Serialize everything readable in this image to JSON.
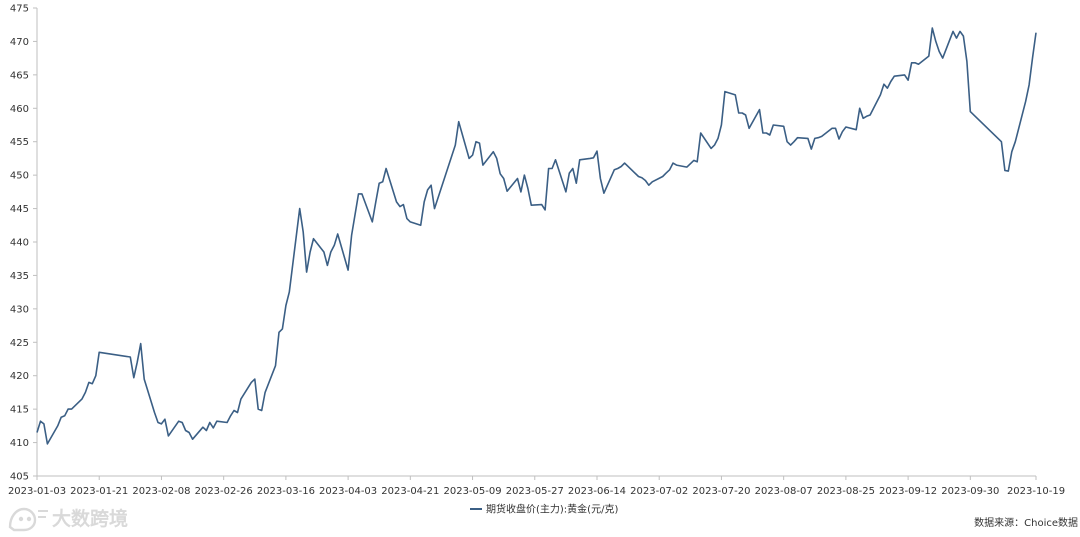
{
  "chart_data": {
    "type": "line",
    "title": "",
    "xlabel": "",
    "ylabel": "",
    "ylim": [
      405,
      475
    ],
    "y_ticks": [
      405,
      410,
      415,
      420,
      425,
      430,
      435,
      440,
      445,
      450,
      455,
      460,
      465,
      470,
      475
    ],
    "x_ticks": [
      "2023-01-03",
      "2023-01-21",
      "2023-02-08",
      "2023-02-26",
      "2023-03-16",
      "2023-04-03",
      "2023-04-21",
      "2023-05-09",
      "2023-05-27",
      "2023-06-14",
      "2023-07-02",
      "2023-07-20",
      "2023-08-07",
      "2023-08-25",
      "2023-09-12",
      "2023-09-30",
      "2023-10-19"
    ],
    "grid": false,
    "legend_position": "bottom-center",
    "series": [
      {
        "name": "期货收盘价(主力):黄金(元/克)",
        "color": "#3b5f85",
        "points": [
          [
            "2023-01-03",
            411.5
          ],
          [
            "2023-01-04",
            413.2
          ],
          [
            "2023-01-05",
            412.8
          ],
          [
            "2023-01-06",
            409.8
          ],
          [
            "2023-01-09",
            412.5
          ],
          [
            "2023-01-10",
            413.8
          ],
          [
            "2023-01-11",
            414.0
          ],
          [
            "2023-01-12",
            415.0
          ],
          [
            "2023-01-13",
            415.0
          ],
          [
            "2023-01-16",
            416.5
          ],
          [
            "2023-01-17",
            417.5
          ],
          [
            "2023-01-18",
            419.0
          ],
          [
            "2023-01-19",
            418.8
          ],
          [
            "2023-01-20",
            420.0
          ],
          [
            "2023-01-21",
            423.5
          ],
          [
            "2023-01-30",
            422.8
          ],
          [
            "2023-01-31",
            419.7
          ],
          [
            "2023-02-01",
            422.0
          ],
          [
            "2023-02-02",
            424.8
          ],
          [
            "2023-02-03",
            419.5
          ],
          [
            "2023-02-06",
            414.5
          ],
          [
            "2023-02-07",
            413.0
          ],
          [
            "2023-02-08",
            412.8
          ],
          [
            "2023-02-09",
            413.5
          ],
          [
            "2023-02-10",
            411.0
          ],
          [
            "2023-02-13",
            413.2
          ],
          [
            "2023-02-14",
            413.0
          ],
          [
            "2023-02-15",
            411.8
          ],
          [
            "2023-02-16",
            411.5
          ],
          [
            "2023-02-17",
            410.5
          ],
          [
            "2023-02-20",
            412.3
          ],
          [
            "2023-02-21",
            411.8
          ],
          [
            "2023-02-22",
            413.0
          ],
          [
            "2023-02-23",
            412.2
          ],
          [
            "2023-02-24",
            413.2
          ],
          [
            "2023-02-27",
            413.0
          ],
          [
            "2023-02-28",
            414.0
          ],
          [
            "2023-03-01",
            414.8
          ],
          [
            "2023-03-02",
            414.5
          ],
          [
            "2023-03-03",
            416.5
          ],
          [
            "2023-03-06",
            419.0
          ],
          [
            "2023-03-07",
            419.5
          ],
          [
            "2023-03-08",
            415.0
          ],
          [
            "2023-03-09",
            414.8
          ],
          [
            "2023-03-10",
            417.5
          ],
          [
            "2023-03-13",
            421.5
          ],
          [
            "2023-03-14",
            426.5
          ],
          [
            "2023-03-15",
            427.0
          ],
          [
            "2023-03-16",
            430.5
          ],
          [
            "2023-03-17",
            432.5
          ],
          [
            "2023-03-20",
            445.0
          ],
          [
            "2023-03-21",
            441.5
          ],
          [
            "2023-03-22",
            435.5
          ],
          [
            "2023-03-23",
            438.5
          ],
          [
            "2023-03-24",
            440.5
          ],
          [
            "2023-03-27",
            438.5
          ],
          [
            "2023-03-28",
            436.5
          ],
          [
            "2023-03-29",
            438.5
          ],
          [
            "2023-03-30",
            439.5
          ],
          [
            "2023-03-31",
            441.2
          ],
          [
            "2023-04-03",
            435.8
          ],
          [
            "2023-04-04",
            441.0
          ],
          [
            "2023-04-06",
            447.2
          ],
          [
            "2023-04-07",
            447.2
          ],
          [
            "2023-04-10",
            443.0
          ],
          [
            "2023-04-11",
            446.0
          ],
          [
            "2023-04-12",
            448.8
          ],
          [
            "2023-04-13",
            449.0
          ],
          [
            "2023-04-14",
            451.0
          ],
          [
            "2023-04-17",
            446.0
          ],
          [
            "2023-04-18",
            445.3
          ],
          [
            "2023-04-19",
            445.6
          ],
          [
            "2023-04-20",
            443.5
          ],
          [
            "2023-04-21",
            443.0
          ],
          [
            "2023-04-24",
            442.5
          ],
          [
            "2023-04-25",
            446.0
          ],
          [
            "2023-04-26",
            447.8
          ],
          [
            "2023-04-27",
            448.5
          ],
          [
            "2023-04-28",
            445.0
          ],
          [
            "2023-05-04",
            454.5
          ],
          [
            "2023-05-05",
            458.0
          ],
          [
            "2023-05-08",
            452.5
          ],
          [
            "2023-05-09",
            453.0
          ],
          [
            "2023-05-10",
            455.0
          ],
          [
            "2023-05-11",
            454.8
          ],
          [
            "2023-05-12",
            451.5
          ],
          [
            "2023-05-15",
            453.5
          ],
          [
            "2023-05-16",
            452.5
          ],
          [
            "2023-05-17",
            450.2
          ],
          [
            "2023-05-18",
            449.5
          ],
          [
            "2023-05-19",
            447.6
          ],
          [
            "2023-05-22",
            449.5
          ],
          [
            "2023-05-23",
            447.5
          ],
          [
            "2023-05-24",
            450.0
          ],
          [
            "2023-05-25",
            448.0
          ],
          [
            "2023-05-26",
            445.5
          ],
          [
            "2023-05-29",
            445.6
          ],
          [
            "2023-05-30",
            444.8
          ],
          [
            "2023-05-31",
            451.0
          ],
          [
            "2023-06-01",
            451.0
          ],
          [
            "2023-06-02",
            452.3
          ],
          [
            "2023-06-05",
            447.5
          ],
          [
            "2023-06-06",
            450.3
          ],
          [
            "2023-06-07",
            451.0
          ],
          [
            "2023-06-08",
            448.8
          ],
          [
            "2023-06-09",
            452.3
          ],
          [
            "2023-06-12",
            452.5
          ],
          [
            "2023-06-13",
            452.6
          ],
          [
            "2023-06-14",
            453.6
          ],
          [
            "2023-06-15",
            449.5
          ],
          [
            "2023-06-16",
            447.3
          ],
          [
            "2023-06-19",
            450.8
          ],
          [
            "2023-06-20",
            451.0
          ],
          [
            "2023-06-21",
            451.3
          ],
          [
            "2023-06-22",
            451.8
          ],
          [
            "2023-06-26",
            449.8
          ],
          [
            "2023-06-27",
            449.6
          ],
          [
            "2023-06-28",
            449.2
          ],
          [
            "2023-06-29",
            448.5
          ],
          [
            "2023-06-30",
            449.0
          ],
          [
            "2023-07-03",
            449.8
          ],
          [
            "2023-07-04",
            450.3
          ],
          [
            "2023-07-05",
            450.8
          ],
          [
            "2023-07-06",
            451.8
          ],
          [
            "2023-07-07",
            451.5
          ],
          [
            "2023-07-10",
            451.2
          ],
          [
            "2023-07-11",
            451.7
          ],
          [
            "2023-07-12",
            452.2
          ],
          [
            "2023-07-13",
            452.0
          ],
          [
            "2023-07-14",
            456.3
          ],
          [
            "2023-07-17",
            454.0
          ],
          [
            "2023-07-18",
            454.5
          ],
          [
            "2023-07-19",
            455.5
          ],
          [
            "2023-07-20",
            457.5
          ],
          [
            "2023-07-21",
            462.5
          ],
          [
            "2023-07-24",
            462.0
          ],
          [
            "2023-07-25",
            459.3
          ],
          [
            "2023-07-26",
            459.3
          ],
          [
            "2023-07-27",
            459.0
          ],
          [
            "2023-07-28",
            457.0
          ],
          [
            "2023-07-31",
            459.8
          ],
          [
            "2023-08-01",
            456.3
          ],
          [
            "2023-08-02",
            456.3
          ],
          [
            "2023-08-03",
            456.0
          ],
          [
            "2023-08-04",
            457.5
          ],
          [
            "2023-08-07",
            457.3
          ],
          [
            "2023-08-08",
            455.0
          ],
          [
            "2023-08-09",
            454.5
          ],
          [
            "2023-08-10",
            455.0
          ],
          [
            "2023-08-11",
            455.6
          ],
          [
            "2023-08-14",
            455.5
          ],
          [
            "2023-08-15",
            453.9
          ],
          [
            "2023-08-16",
            455.5
          ],
          [
            "2023-08-17",
            455.6
          ],
          [
            "2023-08-18",
            455.8
          ],
          [
            "2023-08-21",
            457.0
          ],
          [
            "2023-08-22",
            457.0
          ],
          [
            "2023-08-23",
            455.4
          ],
          [
            "2023-08-24",
            456.5
          ],
          [
            "2023-08-25",
            457.2
          ],
          [
            "2023-08-28",
            456.8
          ],
          [
            "2023-08-29",
            460.0
          ],
          [
            "2023-08-30",
            458.5
          ],
          [
            "2023-08-31",
            458.8
          ],
          [
            "2023-09-01",
            459.0
          ],
          [
            "2023-09-04",
            462.0
          ],
          [
            "2023-09-05",
            463.6
          ],
          [
            "2023-09-06",
            463.0
          ],
          [
            "2023-09-07",
            464.0
          ],
          [
            "2023-09-08",
            464.8
          ],
          [
            "2023-09-11",
            465.0
          ],
          [
            "2023-09-12",
            464.2
          ],
          [
            "2023-09-13",
            466.8
          ],
          [
            "2023-09-14",
            466.8
          ],
          [
            "2023-09-15",
            466.6
          ],
          [
            "2023-09-18",
            467.8
          ],
          [
            "2023-09-19",
            472.0
          ],
          [
            "2023-09-20",
            470.0
          ],
          [
            "2023-09-21",
            468.5
          ],
          [
            "2023-09-22",
            467.5
          ],
          [
            "2023-09-25",
            471.5
          ],
          [
            "2023-09-26",
            470.5
          ],
          [
            "2023-09-27",
            471.5
          ],
          [
            "2023-09-28",
            470.8
          ],
          [
            "2023-09-29",
            467.0
          ],
          [
            "2023-09-30",
            459.5
          ],
          [
            "2023-10-09",
            455.0
          ],
          [
            "2023-10-10",
            450.7
          ],
          [
            "2023-10-11",
            450.6
          ],
          [
            "2023-10-12",
            453.5
          ],
          [
            "2023-10-13",
            455.0
          ],
          [
            "2023-10-16",
            461.0
          ],
          [
            "2023-10-17",
            463.5
          ],
          [
            "2023-10-18",
            467.5
          ],
          [
            "2023-10-19",
            471.3
          ]
        ]
      }
    ],
    "source_note": "数据来源：Choice数据"
  },
  "watermark": {
    "text": "大数跨境",
    "icon": "fox-logo-icon"
  }
}
